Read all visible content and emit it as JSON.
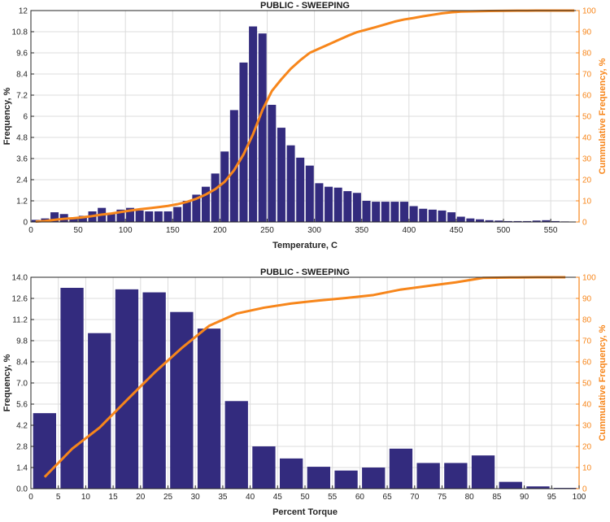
{
  "chart_data": [
    {
      "type": "bar",
      "title": "PUBLIC - SWEEPING",
      "xlabel": "Temperature, C",
      "ylabel": "Frequency, %",
      "y2label": "Cummulative Frequency, %",
      "xlim": [
        0,
        580
      ],
      "ylim": [
        0,
        12
      ],
      "y2lim": [
        0,
        100
      ],
      "xticks": [
        0,
        50,
        100,
        150,
        200,
        250,
        300,
        350,
        400,
        450,
        500,
        550
      ],
      "yticks": [
        "0",
        "1.2",
        "2.4",
        "3.6",
        "4.8",
        "6",
        "7.2",
        "8.4",
        "9.6",
        "10.8",
        "12"
      ],
      "y2ticks": [
        "0",
        "10",
        "20",
        "30",
        "40",
        "50",
        "60",
        "70",
        "80",
        "90",
        "100"
      ],
      "bar_width": 8.6,
      "bars": {
        "x": [
          5,
          15,
          25,
          35,
          45,
          55,
          65,
          75,
          85,
          95,
          105,
          115,
          125,
          135,
          145,
          155,
          165,
          175,
          185,
          195,
          205,
          215,
          225,
          235,
          245,
          255,
          265,
          275,
          285,
          295,
          305,
          315,
          325,
          335,
          345,
          355,
          365,
          375,
          385,
          395,
          405,
          415,
          425,
          435,
          445,
          455,
          465,
          475,
          485,
          495,
          505,
          515,
          525,
          535,
          545,
          555,
          565,
          575
        ],
        "values": [
          0.12,
          0.2,
          0.55,
          0.45,
          0.25,
          0.35,
          0.6,
          0.8,
          0.5,
          0.7,
          0.8,
          0.65,
          0.6,
          0.6,
          0.6,
          0.85,
          1.2,
          1.55,
          2.0,
          2.75,
          4.0,
          6.35,
          9.05,
          11.1,
          10.7,
          6.65,
          5.35,
          4.35,
          3.65,
          3.2,
          2.2,
          2.0,
          1.95,
          1.75,
          1.65,
          1.2,
          1.15,
          1.15,
          1.15,
          1.15,
          0.9,
          0.75,
          0.7,
          0.65,
          0.55,
          0.3,
          0.2,
          0.15,
          0.1,
          0.08,
          0.05,
          0.05,
          0.05,
          0.08,
          0.1,
          0.05,
          0.03,
          0.02
        ]
      },
      "cumulative": {
        "x": [
          5,
          15,
          25,
          35,
          45,
          55,
          65,
          75,
          85,
          95,
          105,
          115,
          125,
          135,
          145,
          155,
          165,
          175,
          185,
          195,
          205,
          215,
          225,
          235,
          245,
          255,
          265,
          275,
          285,
          295,
          305,
          315,
          325,
          335,
          345,
          355,
          365,
          375,
          385,
          395,
          405,
          415,
          425,
          435,
          445,
          455,
          465,
          475,
          485,
          495,
          505,
          515,
          525,
          535,
          545,
          555,
          565,
          575
        ],
        "values": [
          0.2,
          0.5,
          1.0,
          1.5,
          1.8,
          2.2,
          2.8,
          3.5,
          4.0,
          4.7,
          5.4,
          6.0,
          6.5,
          7.0,
          7.6,
          8.4,
          9.5,
          11.0,
          13.0,
          15.5,
          19.0,
          24.5,
          32.0,
          41.5,
          53.0,
          62.0,
          67.5,
          72.5,
          76.5,
          80.0,
          82.0,
          84.0,
          86.0,
          88.0,
          89.8,
          91.0,
          92.2,
          93.5,
          94.8,
          95.8,
          96.5,
          97.3,
          98.0,
          98.7,
          99.2,
          99.5,
          99.6,
          99.7,
          99.8,
          99.85,
          99.9,
          99.95,
          99.97,
          99.98,
          99.99,
          100,
          100,
          100
        ]
      },
      "colors": {
        "bar": "#332b7e",
        "line": "#f7861b"
      }
    },
    {
      "type": "bar",
      "title": "PUBLIC - SWEEPING",
      "xlabel": "Percent Torque",
      "ylabel": "Frequency, %",
      "y2label": "Cummulative Frequency, %",
      "xlim": [
        0,
        100
      ],
      "ylim": [
        0,
        14
      ],
      "y2lim": [
        0,
        100
      ],
      "xticks": [
        0,
        5,
        10,
        15,
        20,
        25,
        30,
        35,
        40,
        45,
        50,
        55,
        60,
        65,
        70,
        75,
        80,
        85,
        90,
        95,
        100
      ],
      "yticks": [
        "0.0",
        "1.4",
        "2.8",
        "4.2",
        "5.6",
        "7.0",
        "8.4",
        "9.8",
        "11.2",
        "12.6",
        "14.0"
      ],
      "y2ticks": [
        "0",
        "10",
        "20",
        "30",
        "40",
        "50",
        "60",
        "70",
        "80",
        "90",
        "100"
      ],
      "bar_width": 4.2,
      "bars": {
        "x": [
          2.5,
          7.5,
          12.5,
          17.5,
          22.5,
          27.5,
          32.5,
          37.5,
          42.5,
          47.5,
          52.5,
          57.5,
          62.5,
          67.5,
          72.5,
          77.5,
          82.5,
          87.5,
          92.5,
          97.5
        ],
        "values": [
          5.0,
          13.3,
          10.3,
          13.2,
          13.0,
          11.7,
          10.6,
          5.8,
          2.8,
          2.0,
          1.45,
          1.2,
          1.4,
          2.65,
          1.7,
          1.7,
          2.2,
          0.45,
          0.15,
          0.05
        ]
      },
      "cumulative": {
        "x": [
          2.5,
          7.5,
          12.5,
          17.5,
          22.5,
          27.5,
          32.5,
          37.5,
          42.5,
          47.5,
          52.5,
          57.5,
          62.5,
          67.5,
          72.5,
          77.5,
          82.5,
          87.5,
          92.5,
          97.5
        ],
        "values": [
          5.5,
          18.8,
          28.8,
          41.9,
          54.8,
          66.5,
          77.0,
          82.8,
          85.6,
          87.6,
          89.0,
          90.2,
          91.6,
          94.2,
          95.9,
          97.6,
          99.7,
          99.9,
          100,
          100
        ]
      },
      "colors": {
        "bar": "#332b7e",
        "line": "#f7861b"
      }
    }
  ]
}
